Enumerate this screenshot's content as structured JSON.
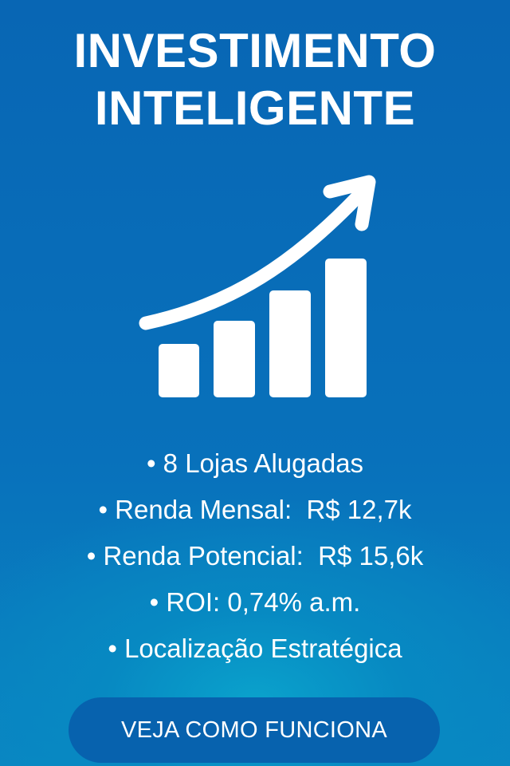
{
  "title": {
    "line1": "INVESTIMENTO",
    "line2": "INTELIGENTE"
  },
  "icon": "bar-chart-growth-arrow-icon",
  "bullets": [
    "• 8 Lojas Alugadas",
    "• Renda Mensal:  R$ 12,7k",
    "• Renda Potencial:  R$ 15,6k",
    "• ROI: 0,74% a.m.",
    "• Localização Estratégica"
  ],
  "cta": {
    "label": "VEJA COMO FUNCIONA"
  },
  "colors": {
    "background": "#0866b4",
    "glow": "#0aa2cc",
    "button": "#0762ae",
    "text": "#ffffff"
  }
}
